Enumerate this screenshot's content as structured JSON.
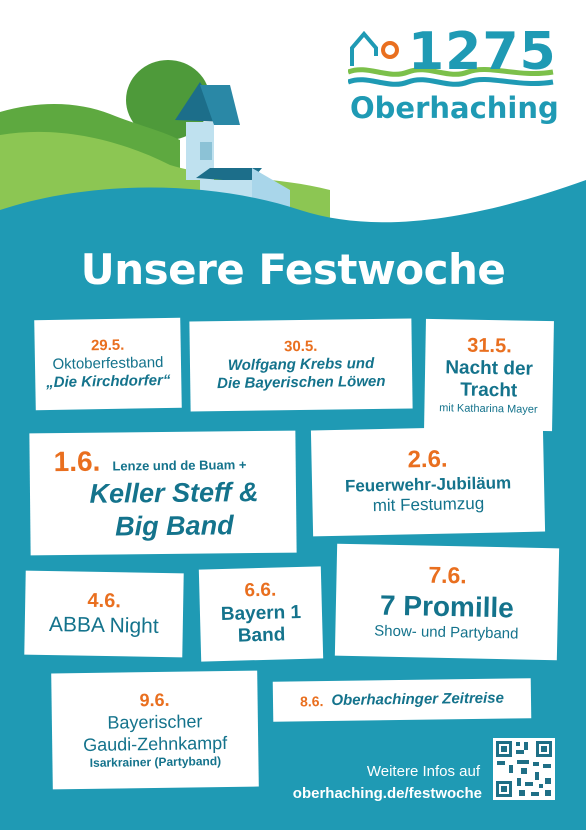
{
  "logo": {
    "year": "1275",
    "town": "Oberhaching"
  },
  "headline": "Unsere Festwoche",
  "events": [
    {
      "date": "29.5.",
      "line1": "Oktoberfestband",
      "line2": "„Die Kirchdorfer“"
    },
    {
      "date": "30.5.",
      "line1": "Wolfgang Krebs und",
      "line2": "Die Bayerischen Löwen"
    },
    {
      "date": "31.5.",
      "line1": "Nacht der",
      "line2": "Tracht",
      "line3": "mit Katharina Mayer"
    },
    {
      "date": "1.6.",
      "pre": "Lenze und de Buam +",
      "line1": "Keller Steff &",
      "line2": "Big Band"
    },
    {
      "date": "2.6.",
      "line1": "Feuerwehr-Jubiläum",
      "line2": "mit Festumzug"
    },
    {
      "date": "4.6.",
      "line1": "ABBA Night"
    },
    {
      "date": "6.6.",
      "line1": "Bayern 1",
      "line2": "Band"
    },
    {
      "date": "7.6.",
      "line1": "7 Promille",
      "line2": "Show- und Partyband"
    },
    {
      "date": "9.6.",
      "line1": "Bayerischer",
      "line2": "Gaudi-Zehnkampf",
      "line3": "Isarkrainer (Partyband)"
    },
    {
      "date": "8.6.",
      "line1": "Oberhachinger Zeitreise"
    }
  ],
  "info": {
    "text": "Weitere Infos auf",
    "url": "oberhaching.de/festwoche"
  },
  "colors": {
    "teal": "#1f9ab4",
    "orange": "#e96f1f",
    "green": "#7cc04a",
    "white": "#ffffff"
  }
}
